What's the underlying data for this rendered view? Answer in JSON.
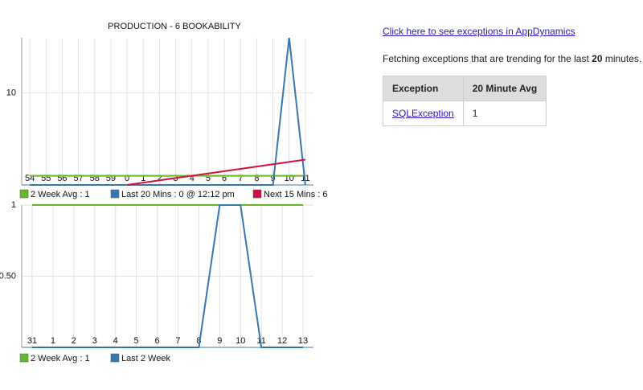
{
  "chart_data": [
    {
      "type": "line",
      "title": "PRODUCTION - 6 BOOKABILITY",
      "categories": [
        "54",
        "55",
        "56",
        "57",
        "58",
        "59",
        "0",
        "1",
        "2",
        "3",
        "4",
        "5",
        "6",
        "7",
        "8",
        "9",
        "10",
        "11"
      ],
      "ylim": [
        0,
        16
      ],
      "yticks": [
        10
      ],
      "grid": true,
      "series": [
        {
          "name": "2 Week Avg : 1",
          "color": "#66b82a",
          "values": [
            1,
            1,
            1,
            1,
            1,
            1,
            1,
            1,
            1,
            1,
            1,
            1,
            1,
            1,
            1,
            1,
            1,
            1
          ]
        },
        {
          "name": "Last 20 Mins : 0 @ 12:12 pm",
          "color": "#3777b0",
          "values": [
            0,
            0,
            0,
            0,
            0,
            0,
            0,
            0,
            0,
            0,
            0,
            0,
            0,
            0,
            0,
            0,
            16,
            0
          ]
        },
        {
          "name": "Next 15 Mins : 6",
          "color": "#d01040",
          "values": [
            null,
            null,
            null,
            null,
            null,
            null,
            0,
            0.25,
            0.5,
            0.75,
            1,
            1.25,
            1.5,
            1.75,
            2,
            2.25,
            2.5,
            2.75
          ]
        }
      ]
    },
    {
      "type": "line",
      "categories": [
        "31",
        "1",
        "2",
        "3",
        "4",
        "5",
        "6",
        "7",
        "8",
        "9",
        "10",
        "11",
        "12",
        "13"
      ],
      "ylim": [
        0,
        1
      ],
      "yticks": [
        1,
        {
          "value": 0.5,
          "label": "0.50"
        }
      ],
      "grid": true,
      "series": [
        {
          "name": "2 Week Avg : 1",
          "color": "#66b82a",
          "values": [
            1,
            1,
            1,
            1,
            1,
            1,
            1,
            1,
            1,
            1,
            1,
            1,
            1,
            1
          ]
        },
        {
          "name": "Last 2 Week",
          "color": "#3777b0",
          "values": [
            0,
            0,
            0,
            0,
            0,
            0,
            0,
            0,
            0,
            1,
            1,
            0,
            0,
            0
          ]
        }
      ]
    }
  ],
  "link": "Click here to see exceptions in AppDynamics",
  "fetching": [
    "Fetching exceptions that are trending for the last ",
    "20",
    " minutes."
  ],
  "table": {
    "header": [
      "Exception",
      "20 Minute Avg"
    ],
    "rows": [
      [
        "SQLException",
        "1"
      ]
    ]
  }
}
